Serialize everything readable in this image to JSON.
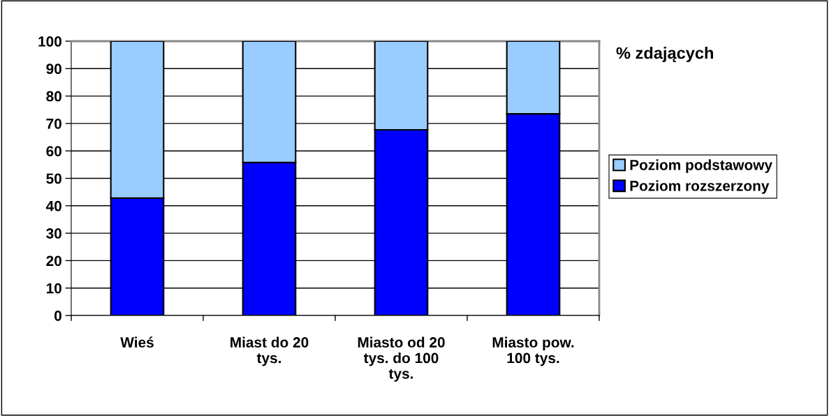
{
  "chart_data": {
    "type": "bar",
    "stacked": true,
    "title": "% zdających",
    "categories": [
      "Wieś",
      "Miast do 20\ntys.",
      "Miasto od 20\ntys. do 100\ntys.",
      "Miasto pow.\n100 tys."
    ],
    "series": [
      {
        "name": "Poziom rozszerzony",
        "color": "#0000ff",
        "values": [
          42.8,
          55.8,
          67.7,
          73.5
        ]
      },
      {
        "name": "Poziom podstawowy",
        "color": "#99ccff",
        "values": [
          57.2,
          44.2,
          32.3,
          26.5
        ]
      }
    ],
    "ylim": [
      0,
      100
    ],
    "yticks": [
      0,
      10,
      20,
      30,
      40,
      50,
      60,
      70,
      80,
      90,
      100
    ],
    "grid": "y",
    "legend": "right"
  }
}
